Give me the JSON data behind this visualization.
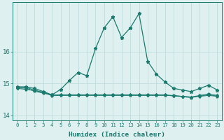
{
  "xlabel": "Humidex (Indice chaleur)",
  "x": [
    0,
    1,
    2,
    3,
    4,
    5,
    6,
    7,
    8,
    9,
    10,
    11,
    12,
    13,
    14,
    15,
    16,
    17,
    18,
    19,
    20,
    21,
    22,
    23
  ],
  "y_main": [
    14.9,
    14.9,
    14.85,
    14.75,
    14.65,
    14.82,
    15.1,
    15.35,
    15.25,
    16.1,
    16.75,
    17.1,
    16.45,
    16.75,
    17.2,
    15.7,
    15.3,
    15.05,
    14.85,
    14.8,
    14.75,
    14.85,
    14.95,
    14.8
  ],
  "y_flat1": [
    14.85,
    14.82,
    14.78,
    14.73,
    14.62,
    14.63,
    14.63,
    14.63,
    14.63,
    14.63,
    14.63,
    14.63,
    14.63,
    14.63,
    14.63,
    14.63,
    14.63,
    14.63,
    14.63,
    14.6,
    14.58,
    14.6,
    14.63,
    14.6
  ],
  "y_flat2": [
    14.88,
    14.88,
    14.8,
    14.72,
    14.65,
    14.65,
    14.65,
    14.65,
    14.65,
    14.65,
    14.65,
    14.65,
    14.65,
    14.65,
    14.65,
    14.65,
    14.65,
    14.65,
    14.62,
    14.6,
    14.58,
    14.63,
    14.68,
    14.63
  ],
  "y_flat3": [
    14.86,
    14.86,
    14.76,
    14.7,
    14.64,
    14.64,
    14.64,
    14.64,
    14.64,
    14.64,
    14.64,
    14.64,
    14.64,
    14.64,
    14.64,
    14.64,
    14.64,
    14.64,
    14.61,
    14.59,
    14.56,
    14.61,
    14.65,
    14.61
  ],
  "line_color": "#1a7a6e",
  "bg_color": "#dff0f0",
  "grid_color": "#b8d8d8",
  "ylim": [
    13.85,
    17.55
  ],
  "yticks": [
    14,
    15,
    16
  ],
  "xtick_fontsize": 5.2,
  "ytick_fontsize": 6.5,
  "xlabel_fontsize": 6.8,
  "figsize": [
    3.2,
    2.0
  ],
  "dpi": 100
}
